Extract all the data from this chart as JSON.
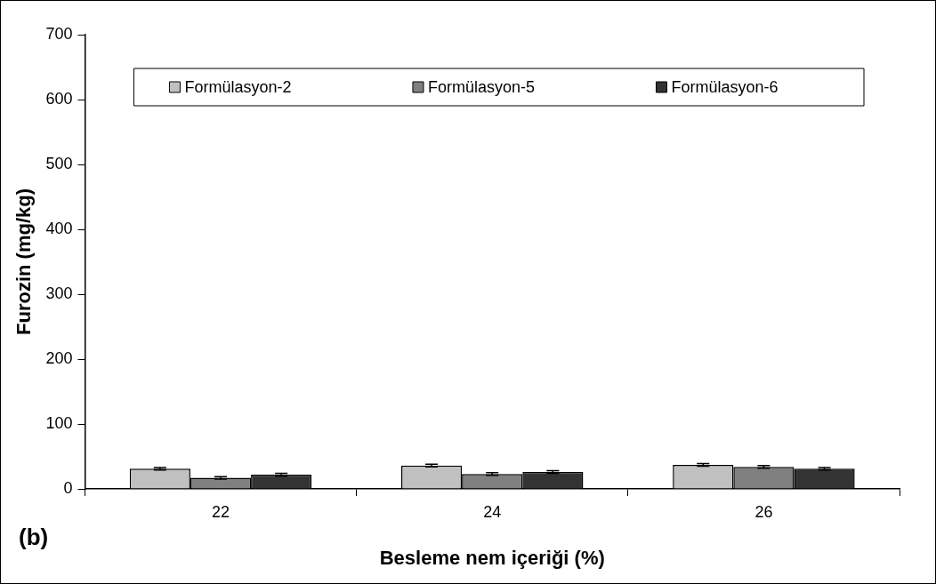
{
  "chart_data": {
    "type": "bar",
    "xlabel": "Besleme nem içeriği (%)",
    "ylabel": "Furozin (mg/kg)",
    "categories": [
      "22",
      "24",
      "26"
    ],
    "series": [
      {
        "name": "Formülasyon-2",
        "color": "#c0c0c0",
        "values": [
          31,
          36,
          37
        ],
        "errors": [
          2,
          2,
          2
        ]
      },
      {
        "name": "Formülasyon-5",
        "color": "#808080",
        "values": [
          17,
          23,
          34
        ],
        "errors": [
          2,
          2,
          2
        ]
      },
      {
        "name": "Formülasyon-6",
        "color": "#333333",
        "values": [
          22,
          26,
          31
        ],
        "errors": [
          2,
          2,
          2
        ]
      }
    ],
    "ylim": [
      0,
      700
    ],
    "yticks": [
      0,
      100,
      200,
      300,
      400,
      500,
      600,
      700
    ],
    "grid": false,
    "legend": "top",
    "annotations": [
      "(b)"
    ]
  }
}
